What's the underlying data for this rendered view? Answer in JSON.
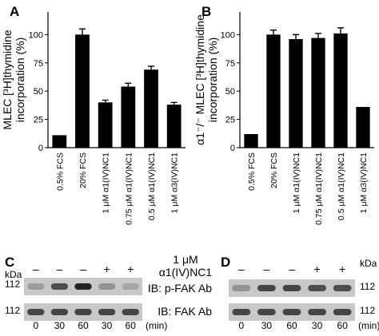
{
  "colors": {
    "bar": "#000000",
    "axis": "#000000",
    "blot_bg": "#c8c8c8",
    "band": "#1a1a1a"
  },
  "chart_data": [
    {
      "panel": "A",
      "type": "bar",
      "ylabel_line1": "MLEC [³H]thymidine",
      "ylabel_line2": "incorporation (%)",
      "ylim": [
        0,
        120
      ],
      "yticks": [
        0,
        25,
        50,
        75,
        100
      ],
      "grid": false,
      "categories": [
        "0.5% FCS",
        "20% FCS",
        "1 μM α1(IV)NC1",
        "0.75 μM α1(IV)NC1",
        "0.5 μM α1(IV)NC1",
        "1 μM α3(IV)NC1"
      ],
      "values": [
        11,
        100,
        40,
        54,
        69,
        38
      ],
      "errors": [
        0,
        5,
        2,
        3,
        3,
        2
      ]
    },
    {
      "panel": "B",
      "type": "bar",
      "ylabel_line1": "α1⁻/⁻ MLEC [³H]thymidine",
      "ylabel_line2": "incorporation (%)",
      "ylim": [
        0,
        120
      ],
      "yticks": [
        0,
        25,
        50,
        75,
        100
      ],
      "grid": false,
      "categories": [
        "0.5% FCS",
        "20% FCS",
        "1 μM α1(IV)NC1",
        "0.75 μM α1(IV)NC1",
        "0.5 μM α1(IV)NC1",
        "1 μM α3(IV)NC1"
      ],
      "values": [
        12,
        100,
        96,
        97,
        101,
        36
      ],
      "errors": [
        0,
        4,
        4,
        4,
        5,
        0
      ]
    }
  ],
  "blots": {
    "kda_label": "kDa",
    "marker": "112",
    "treatment_line1": "1 μM",
    "treatment_line2": "α1(IV)NC1",
    "signs": [
      "–",
      "–",
      "–",
      "+",
      "+"
    ],
    "times": [
      "0",
      "30",
      "60",
      "30",
      "60"
    ],
    "time_unit": "(min)",
    "ib_top": "IB: p-FAK Ab",
    "ib_bottom": "IB: FAK Ab",
    "panel_c": {
      "letter": "C",
      "top_band_intensity": [
        0.25,
        0.7,
        0.95,
        0.3,
        0.2
      ],
      "bottom_band_intensity": [
        0.75,
        0.75,
        0.75,
        0.75,
        0.75
      ]
    },
    "panel_d": {
      "letter": "D",
      "top_band_intensity": [
        0.3,
        0.75,
        0.75,
        0.7,
        0.7
      ],
      "bottom_band_intensity": [
        0.75,
        0.75,
        0.75,
        0.75,
        0.75
      ]
    }
  }
}
